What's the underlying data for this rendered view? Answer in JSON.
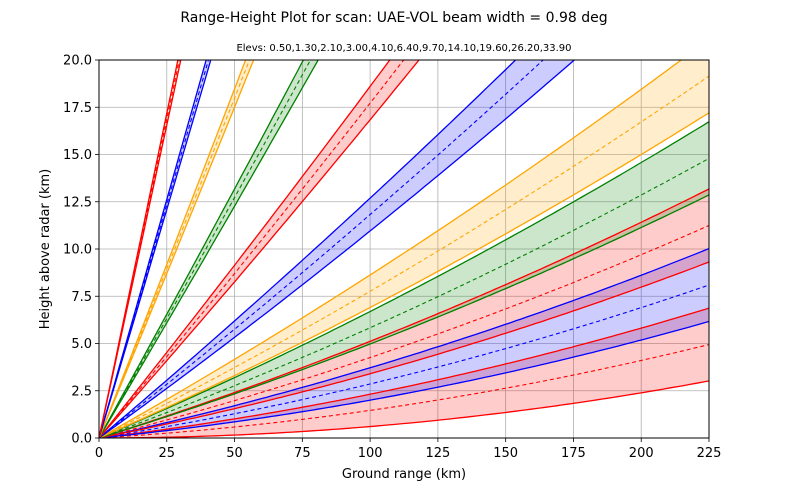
{
  "chart_data": {
    "type": "line",
    "title": "Range-Height Plot for scan: UAE-VOL  beam width = 0.98 deg",
    "subtitle": "Elevs: 0.50,1.30,2.10,3.00,4.10,6.40,9.70,14.10,19.60,26.20,33.90",
    "xlabel": "Ground range (km)",
    "ylabel": "Height above radar (km)",
    "xlim": [
      0,
      225
    ],
    "ylim": [
      0,
      20
    ],
    "xticks": [
      "0",
      "25",
      "50",
      "75",
      "100",
      "125",
      "150",
      "175",
      "200",
      "225"
    ],
    "yticks": [
      "0.0",
      "2.5",
      "5.0",
      "7.5",
      "10.0",
      "12.5",
      "15.0",
      "17.5",
      "20.0"
    ],
    "grid": true,
    "beam_width_deg": 0.98,
    "elevations_deg": [
      0.5,
      1.3,
      2.1,
      3.0,
      4.1,
      6.4,
      9.7,
      14.1,
      19.6,
      26.2,
      33.9
    ],
    "series_colors": [
      "#ff0000",
      "#0000ff",
      "#ff0000",
      "#008000",
      "#ffa500",
      "#0000ff",
      "#ff0000",
      "#008000",
      "#ffa500",
      "#0000ff",
      "#ff0000"
    ],
    "band_colors": [
      "#ff0000",
      "#0000ff",
      "#ff0000",
      "#008000",
      "#ffa500",
      "#0000ff",
      "#ff0000",
      "#008000",
      "#ffa500",
      "#0000ff",
      "#ffa500"
    ],
    "band_opacity": 0.2
  }
}
